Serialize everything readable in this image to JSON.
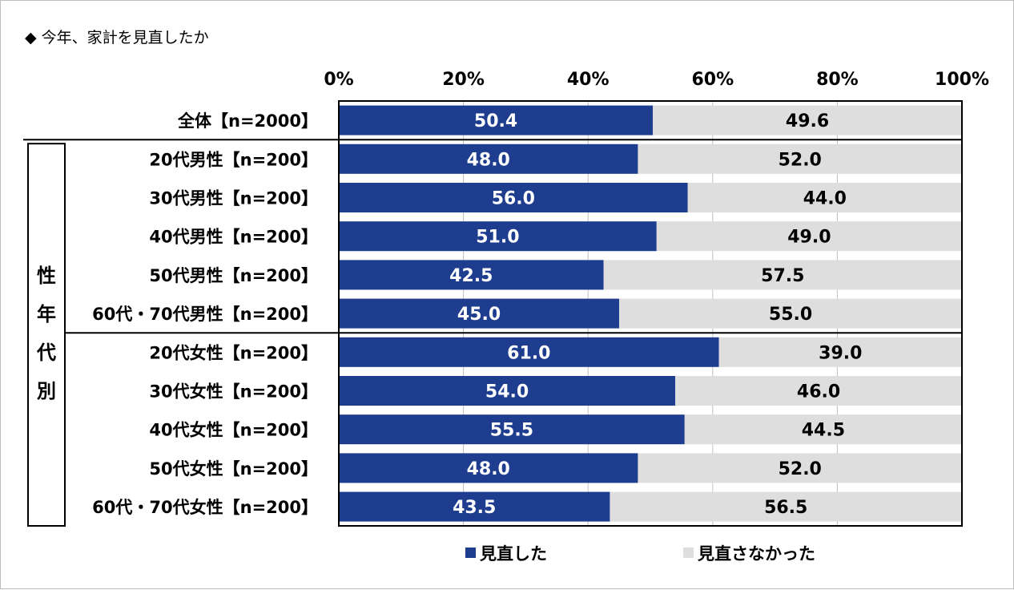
{
  "title": "◆ 今年、家計を見直したか",
  "group_label": "性年代別",
  "chart_data": {
    "type": "bar",
    "orientation": "horizontal",
    "stacked": true,
    "percent_stacked": true,
    "x_ticks": [
      "0%",
      "20%",
      "40%",
      "60%",
      "80%",
      "100%"
    ],
    "xlim": [
      0,
      100
    ],
    "grid": true,
    "categories": [
      "全体【n=2000】",
      "20代男性【n=200】",
      "30代男性【n=200】",
      "40代男性【n=200】",
      "50代男性【n=200】",
      "60代・70代男性【n=200】",
      "20代女性【n=200】",
      "30代女性【n=200】",
      "40代女性【n=200】",
      "50代女性【n=200】",
      "60代・70代女性【n=200】"
    ],
    "series": [
      {
        "name": "見直した",
        "color": "#1f3d8f",
        "values": [
          50.4,
          48.0,
          56.0,
          51.0,
          42.5,
          45.0,
          61.0,
          54.0,
          55.5,
          48.0,
          43.5
        ],
        "labels": [
          "50.4",
          "48.0",
          "56.0",
          "51.0",
          "42.5",
          "45.0",
          "61.0",
          "54.0",
          "55.5",
          "48.0",
          "43.5"
        ]
      },
      {
        "name": "見直さなかった",
        "color": "#dedede",
        "values": [
          49.6,
          52.0,
          44.0,
          49.0,
          57.5,
          55.0,
          39.0,
          46.0,
          44.5,
          52.0,
          56.5
        ],
        "labels": [
          "49.6",
          "52.0",
          "44.0",
          "49.0",
          "57.5",
          "55.0",
          "39.0",
          "46.0",
          "44.5",
          "52.0",
          "56.5"
        ]
      }
    ],
    "legend_position": "bottom"
  }
}
